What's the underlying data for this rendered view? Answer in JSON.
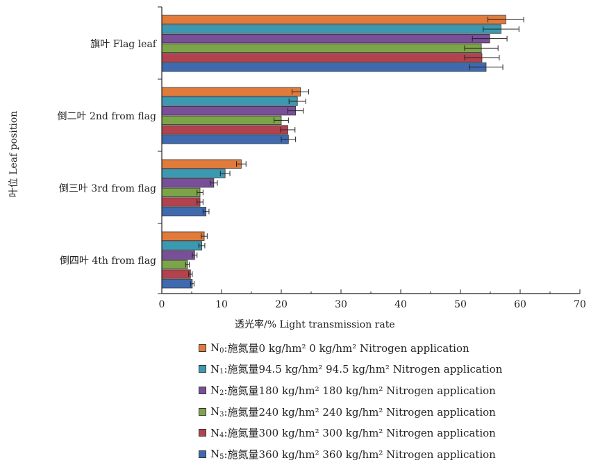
{
  "chart_data": {
    "type": "bar",
    "orientation": "horizontal",
    "categories": [
      "旗叶 Flag leaf",
      "倒二叶 2nd from flag",
      "倒三叶 3rd from flag",
      "倒四叶 4th from flag"
    ],
    "xlabel": "透光率/%   Light transmission rate",
    "ylabel": "叶位 Leaf position",
    "xlim": [
      0,
      70
    ],
    "xticks": [
      "0",
      "10",
      "20",
      "30",
      "40",
      "50",
      "60",
      "70"
    ],
    "grid": false,
    "legend_position": "bottom",
    "series": [
      {
        "name": "施氮量0 kg/hm²  0 kg/hm² Nitrogen application",
        "symbol": "N",
        "sub": "0",
        "color": "#e07b3c",
        "values": [
          57.6,
          23.2,
          13.3,
          7.1
        ],
        "errors": [
          3.0,
          1.4,
          0.8,
          0.5
        ]
      },
      {
        "name": "施氮量94.5 kg/hm²  94.5 kg/hm² Nitrogen application",
        "symbol": "N",
        "sub": "1",
        "color": "#3b9ab2",
        "values": [
          56.8,
          22.7,
          10.6,
          6.7
        ],
        "errors": [
          3.0,
          1.4,
          0.8,
          0.5
        ]
      },
      {
        "name": "施氮量180 kg/hm²  180 kg/hm² Nitrogen application",
        "symbol": "N",
        "sub": "2",
        "color": "#7a4f9a",
        "values": [
          54.9,
          22.4,
          8.7,
          5.5
        ],
        "errors": [
          2.9,
          1.3,
          0.6,
          0.4
        ]
      },
      {
        "name": "施氮量240 kg/hm²  240 kg/hm² Nitrogen application",
        "symbol": "N",
        "sub": "3",
        "color": "#7ea44a",
        "values": [
          53.5,
          20.0,
          6.4,
          4.3
        ],
        "errors": [
          2.8,
          1.2,
          0.5,
          0.3
        ]
      },
      {
        "name": "施氮量300 kg/hm²  300 kg/hm² Nitrogen application",
        "symbol": "N",
        "sub": "4",
        "color": "#b2424e",
        "values": [
          53.6,
          21.1,
          6.4,
          4.8
        ],
        "errors": [
          2.9,
          1.2,
          0.5,
          0.3
        ]
      },
      {
        "name": "施氮量360 kg/hm²  360 kg/hm² Nitrogen application",
        "symbol": "N",
        "sub": "5",
        "color": "#3f6ab0",
        "values": [
          54.3,
          21.2,
          7.4,
          5.1
        ],
        "errors": [
          2.8,
          1.2,
          0.5,
          0.3
        ]
      }
    ]
  }
}
